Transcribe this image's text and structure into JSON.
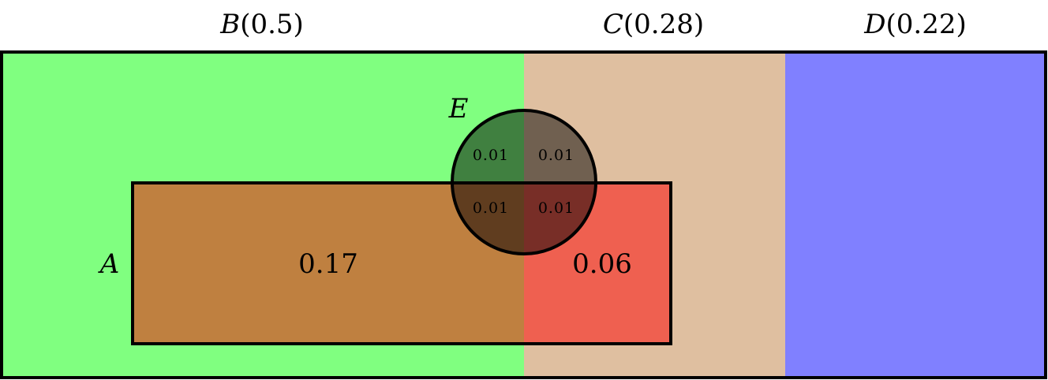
{
  "columns": [
    {
      "name": "B",
      "value": "0.5",
      "color": "#80ff80"
    },
    {
      "name": "C",
      "value": "0.28",
      "color": "#dfbfa0"
    },
    {
      "name": "D",
      "value": "0.22",
      "color": "#8080ff"
    }
  ],
  "sets": {
    "a_label": "A",
    "e_label": "E"
  },
  "region_values": {
    "a_in_b": "0.17",
    "a_in_c": "0.06",
    "e_in_b_top": "0.01",
    "e_in_c_top": "0.01",
    "e_in_b_a": "0.01",
    "e_in_c_a": "0.01"
  },
  "colors": {
    "a_in_b": "#bf8040",
    "a_in_c": "#ef6050",
    "e_in_b": "#408040",
    "e_in_c": "#706050",
    "e_in_b_a": "#603d1f",
    "e_in_c_a": "#782e27",
    "border": "#000000"
  }
}
